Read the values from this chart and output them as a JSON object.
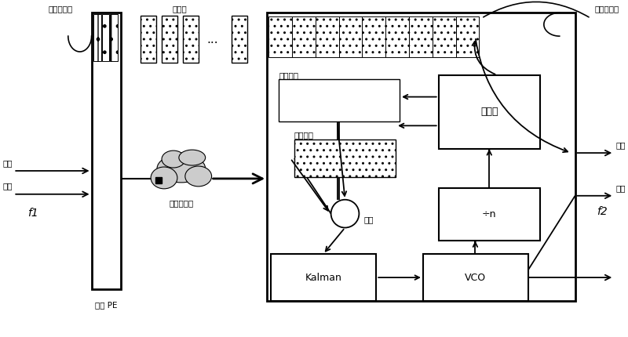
{
  "bg_color": "#ffffff",
  "fig_width": 8.0,
  "fig_height": 4.3,
  "labels": {
    "send_buffer": "发送缓冲区",
    "data_packet": "数据包",
    "data_input": "数据",
    "clock_input": "时钟",
    "f1": "f1",
    "ethernet": "以太网网络",
    "send_PE": "发送 PE",
    "recv_timestamp": "接收时戳",
    "send_timestamp": "发送时戳",
    "error": "差错",
    "counter": "计数器",
    "div_n": "÷n",
    "vco": "VCO",
    "kalman": "Kalman",
    "jitter_buffer": "去抖缓冲区",
    "data_output": "数据",
    "clock_output": "时钟",
    "f2": "f2"
  }
}
